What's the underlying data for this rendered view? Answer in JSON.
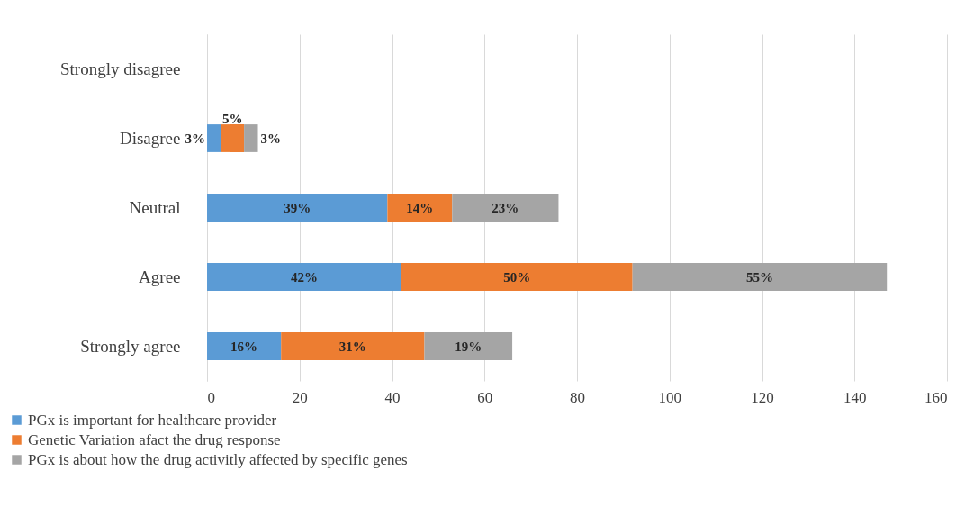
{
  "chart_data": {
    "type": "bar",
    "orientation": "horizontal",
    "stacked": true,
    "categories": [
      "Strongly disagree",
      "Disagree",
      "Neutral",
      "Agree",
      "Strongly agree"
    ],
    "series": [
      {
        "name": "PGx is important for healthcare provider",
        "color": "#5b9bd5",
        "values": [
          null,
          3,
          39,
          42,
          16
        ],
        "value_labels": [
          null,
          "3%",
          "39%",
          "42%",
          "16%"
        ]
      },
      {
        "name": "Genetic Variation afact the drug response",
        "color": "#ed7d31",
        "values": [
          null,
          5,
          14,
          50,
          31
        ],
        "value_labels": [
          null,
          "5%",
          "14%",
          "50%",
          "31%"
        ]
      },
      {
        "name": "PGx is about how the drug activitly affected by specific genes",
        "color": "#a5a5a5",
        "values": [
          null,
          3,
          23,
          55,
          19
        ],
        "value_labels": [
          null,
          "3%",
          "23%",
          "55%",
          "19%"
        ]
      }
    ],
    "xlim": [
      0,
      160
    ],
    "xticks": [
      0,
      20,
      40,
      60,
      80,
      100,
      120,
      140,
      160
    ],
    "grid": "x",
    "legend": "bottom"
  }
}
